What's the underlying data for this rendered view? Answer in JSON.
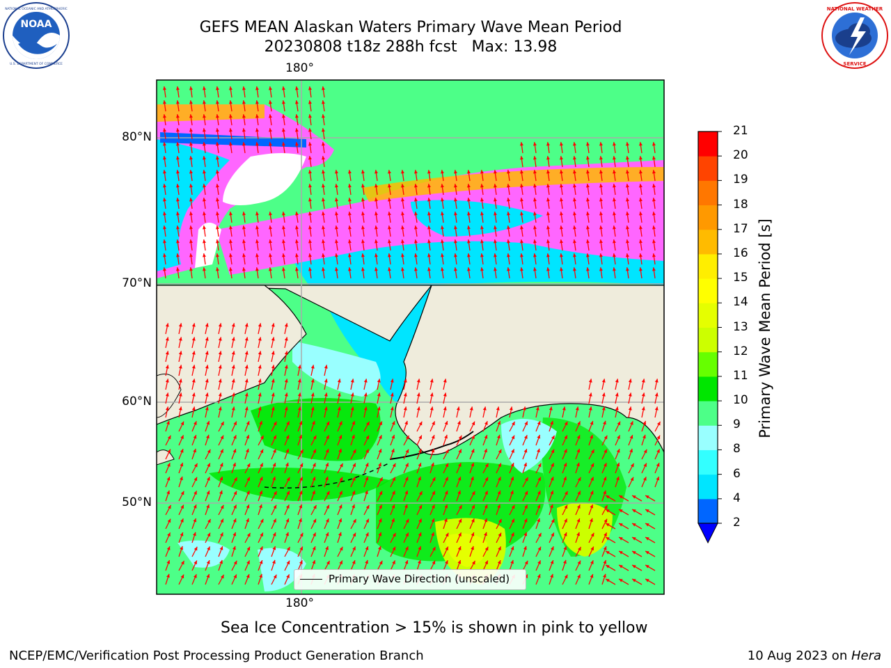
{
  "title": {
    "line1": "GEFS MEAN Alaskan Waters Primary Wave Mean Period",
    "line2": "20230808 t18z 288h fcst   Max: 13.98"
  },
  "logos": {
    "left": {
      "name": "NOAA",
      "ring_text": "NATIONAL OCEANIC AND ATMOSPHERIC ADMINISTRATION · U.S. DEPARTMENT OF COMMERCE",
      "icon": "noaa-logo"
    },
    "right": {
      "name": "NATIONAL WEATHER SERVICE",
      "icon": "nws-logo"
    }
  },
  "map": {
    "lon_label_top": "180°",
    "lon_label_bottom": "180°",
    "lat_labels": [
      "80°N",
      "70°N",
      "60°N",
      "50°N"
    ],
    "legend": "Primary Wave Direction (unscaled)",
    "land_color": "#efecdc",
    "arrow_color": "#ff0000"
  },
  "colorbar": {
    "label": "Primary Wave Mean Period [s]",
    "ticks": [
      "2",
      "4",
      "6",
      "8",
      "9",
      "10",
      "11",
      "12",
      "13",
      "14",
      "15",
      "16",
      "17",
      "18",
      "19",
      "20",
      "21"
    ],
    "colors": [
      "#0066ff",
      "#00e5ff",
      "#33ffff",
      "#99ffff",
      "#4dff88",
      "#00e600",
      "#66ff00",
      "#ccff00",
      "#e5ff00",
      "#ffff00",
      "#ffee00",
      "#ffbb00",
      "#ff9900",
      "#ff7700",
      "#ff4400",
      "#ff0000"
    ],
    "under_color": "#0000ff"
  },
  "footnote": "Sea Ice Concentration > 15% is shown in pink to yellow",
  "credits": {
    "left": "NCEP/EMC/Verification Post Processing Product Generation Branch",
    "right_date": "10 Aug 2023 on ",
    "right_host": "Hera"
  }
}
